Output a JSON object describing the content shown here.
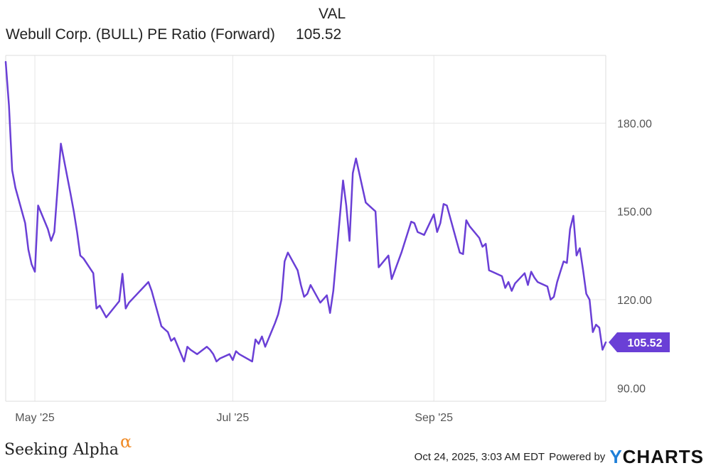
{
  "legend": {
    "column_header": "VAL",
    "series_name": "Webull Corp. (BULL) PE Ratio (Forward)",
    "series_value": "105.52"
  },
  "footer": {
    "brand_left": "Seeking Alpha",
    "brand_left_symbol": "α",
    "timestamp": "Oct 24, 2025, 3:03 AM EDT",
    "powered_by": "Powered by",
    "brand_right_first": "Y",
    "brand_right_rest": "CHARTS"
  },
  "colors": {
    "line": "#6a3fd6",
    "gridline": "#e6e6e6",
    "axis_text": "#555555",
    "alpha_accent": "#f08a24",
    "ycharts_y": "#1e7fd8"
  },
  "chart_data": {
    "type": "line",
    "title": "",
    "xlabel": "",
    "ylabel": "",
    "y_axis_position": "right",
    "ylim": [
      85.5,
      203
    ],
    "yticks": [
      90,
      120,
      150,
      180
    ],
    "ytick_labels": [
      "90.00",
      "120.00",
      "150.00",
      "180.00"
    ],
    "x_range": [
      "2025-04-22",
      "2025-10-24"
    ],
    "xticks": [
      {
        "date": "2025-05-01",
        "label": "May '25"
      },
      {
        "date": "2025-07-01",
        "label": "Jul '25"
      },
      {
        "date": "2025-09-01",
        "label": "Sep '25"
      }
    ],
    "grid": true,
    "last_value_label": "105.52",
    "series": [
      {
        "name": "Webull Corp. (BULL) PE Ratio (Forward)",
        "points": [
          [
            "2025-04-22",
            200.8
          ],
          [
            "2025-04-23",
            186.0
          ],
          [
            "2025-04-24",
            164.0
          ],
          [
            "2025-04-25",
            158.0
          ],
          [
            "2025-04-28",
            146.0
          ],
          [
            "2025-04-29",
            137.0
          ],
          [
            "2025-04-30",
            132.0
          ],
          [
            "2025-05-01",
            129.5
          ],
          [
            "2025-05-02",
            152.0
          ],
          [
            "2025-05-05",
            144.0
          ],
          [
            "2025-05-06",
            140.0
          ],
          [
            "2025-05-07",
            143.0
          ],
          [
            "2025-05-08",
            158.0
          ],
          [
            "2025-05-09",
            173.0
          ],
          [
            "2025-05-12",
            156.0
          ],
          [
            "2025-05-13",
            150.0
          ],
          [
            "2025-05-14",
            143.0
          ],
          [
            "2025-05-15",
            135.0
          ],
          [
            "2025-05-16",
            134.0
          ],
          [
            "2025-05-19",
            129.0
          ],
          [
            "2025-05-20",
            117.0
          ],
          [
            "2025-05-21",
            118.0
          ],
          [
            "2025-05-22",
            116.0
          ],
          [
            "2025-05-23",
            114.0
          ],
          [
            "2025-05-27",
            119.5
          ],
          [
            "2025-05-28",
            128.8
          ],
          [
            "2025-05-29",
            117.0
          ],
          [
            "2025-05-30",
            119.0
          ],
          [
            "2025-06-05",
            126.0
          ],
          [
            "2025-06-06",
            123.0
          ],
          [
            "2025-06-09",
            111.0
          ],
          [
            "2025-06-10",
            110.0
          ],
          [
            "2025-06-11",
            109.0
          ],
          [
            "2025-06-12",
            106.0
          ],
          [
            "2025-06-13",
            107.0
          ],
          [
            "2025-06-16",
            99.0
          ],
          [
            "2025-06-17",
            104.0
          ],
          [
            "2025-06-18",
            103.0
          ],
          [
            "2025-06-20",
            101.5
          ],
          [
            "2025-06-23",
            104.0
          ],
          [
            "2025-06-24",
            103.0
          ],
          [
            "2025-06-25",
            101.5
          ],
          [
            "2025-06-26",
            99.0
          ],
          [
            "2025-06-27",
            100.0
          ],
          [
            "2025-06-30",
            101.5
          ],
          [
            "2025-07-01",
            99.5
          ],
          [
            "2025-07-02",
            102.5
          ],
          [
            "2025-07-03",
            101.5
          ],
          [
            "2025-07-07",
            99.0
          ],
          [
            "2025-07-08",
            106.5
          ],
          [
            "2025-07-09",
            105.0
          ],
          [
            "2025-07-10",
            107.5
          ],
          [
            "2025-07-11",
            104.0
          ],
          [
            "2025-07-14",
            112.0
          ],
          [
            "2025-07-15",
            115.0
          ],
          [
            "2025-07-16",
            120.0
          ],
          [
            "2025-07-17",
            133.0
          ],
          [
            "2025-07-18",
            136.0
          ],
          [
            "2025-07-21",
            130.0
          ],
          [
            "2025-07-22",
            125.0
          ],
          [
            "2025-07-23",
            121.0
          ],
          [
            "2025-07-24",
            122.0
          ],
          [
            "2025-07-25",
            125.0
          ],
          [
            "2025-07-28",
            119.0
          ],
          [
            "2025-07-30",
            121.5
          ],
          [
            "2025-07-31",
            115.5
          ],
          [
            "2025-08-01",
            123.0
          ],
          [
            "2025-08-04",
            160.5
          ],
          [
            "2025-08-05",
            152.0
          ],
          [
            "2025-08-06",
            140.0
          ],
          [
            "2025-08-07",
            163.0
          ],
          [
            "2025-08-08",
            168.0
          ],
          [
            "2025-08-11",
            153.0
          ],
          [
            "2025-08-12",
            152.0
          ],
          [
            "2025-08-14",
            150.0
          ],
          [
            "2025-08-15",
            131.0
          ],
          [
            "2025-08-18",
            135.0
          ],
          [
            "2025-08-19",
            127.0
          ],
          [
            "2025-08-20",
            130.0
          ],
          [
            "2025-08-22",
            136.0
          ],
          [
            "2025-08-25",
            146.5
          ],
          [
            "2025-08-26",
            146.0
          ],
          [
            "2025-08-27",
            143.0
          ],
          [
            "2025-08-28",
            142.5
          ],
          [
            "2025-08-29",
            142.0
          ],
          [
            "2025-09-01",
            149.0
          ],
          [
            "2025-09-02",
            143.0
          ],
          [
            "2025-09-03",
            146.0
          ],
          [
            "2025-09-04",
            152.5
          ],
          [
            "2025-09-05",
            152.0
          ],
          [
            "2025-09-08",
            140.0
          ],
          [
            "2025-09-09",
            136.0
          ],
          [
            "2025-09-10",
            135.5
          ],
          [
            "2025-09-11",
            147.0
          ],
          [
            "2025-09-12",
            145.0
          ],
          [
            "2025-09-15",
            141.0
          ],
          [
            "2025-09-16",
            138.0
          ],
          [
            "2025-09-17",
            139.0
          ],
          [
            "2025-09-18",
            130.0
          ],
          [
            "2025-09-19",
            129.5
          ],
          [
            "2025-09-22",
            128.0
          ],
          [
            "2025-09-23",
            124.0
          ],
          [
            "2025-09-24",
            126.0
          ],
          [
            "2025-09-25",
            123.0
          ],
          [
            "2025-09-26",
            125.5
          ],
          [
            "2025-09-29",
            129.0
          ],
          [
            "2025-09-30",
            125.0
          ],
          [
            "2025-10-01",
            129.5
          ],
          [
            "2025-10-02",
            127.5
          ],
          [
            "2025-10-03",
            126.0
          ],
          [
            "2025-10-06",
            124.5
          ],
          [
            "2025-10-07",
            120.0
          ],
          [
            "2025-10-08",
            121.0
          ],
          [
            "2025-10-09",
            126.0
          ],
          [
            "2025-10-10",
            129.5
          ],
          [
            "2025-10-11",
            133.0
          ],
          [
            "2025-10-12",
            132.5
          ],
          [
            "2025-10-13",
            144.0
          ],
          [
            "2025-10-14",
            148.5
          ],
          [
            "2025-10-15",
            135.0
          ],
          [
            "2025-10-16",
            137.5
          ],
          [
            "2025-10-17",
            130.0
          ],
          [
            "2025-10-18",
            122.0
          ],
          [
            "2025-10-19",
            120.0
          ],
          [
            "2025-10-20",
            109.0
          ],
          [
            "2025-10-21",
            111.5
          ],
          [
            "2025-10-22",
            110.5
          ],
          [
            "2025-10-23",
            103.0
          ],
          [
            "2025-10-24",
            105.52
          ]
        ]
      }
    ]
  }
}
